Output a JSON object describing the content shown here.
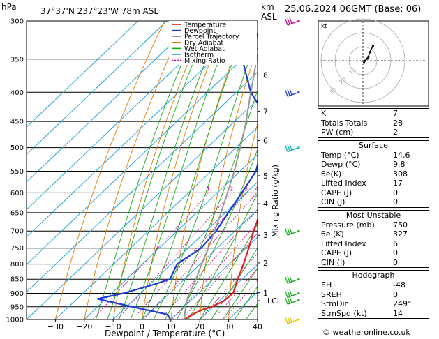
{
  "header": {
    "pressure_unit": "hPa",
    "location": "37°37'N  237°23'W  78m  ASL",
    "km_unit": "km",
    "asl": "ASL",
    "datetime": "25.06.2024  06GMT  (Base: 06)"
  },
  "legend": [
    {
      "name": "Temperature",
      "color": "#e8191b"
    },
    {
      "name": "Dewpoint",
      "color": "#1e3ad6"
    },
    {
      "name": "Parcel Trajectory",
      "color": "#999999"
    },
    {
      "name": "Dry Adiabat",
      "color": "#e07b00"
    },
    {
      "name": "Wet Adiabat",
      "color": "#17a818"
    },
    {
      "name": "Isotherm",
      "color": "#25a4d6"
    },
    {
      "name": "Mixing Ratio",
      "color": "#c0008a"
    }
  ],
  "chart_data": {
    "type": "line",
    "xlabel": "Dewpoint / Temperature (°C)",
    "ylabel_right": "Mixing Ratio (g/kg)",
    "x_ticks": [
      -30,
      -20,
      -10,
      0,
      10,
      20,
      30,
      40
    ],
    "xlim": [
      -40,
      40
    ],
    "pressure_levels": [
      300,
      350,
      400,
      450,
      500,
      550,
      600,
      650,
      700,
      750,
      800,
      850,
      900,
      950,
      1000
    ],
    "km_ticks": [
      {
        "label": "8",
        "p": 373
      },
      {
        "label": "7",
        "p": 432
      },
      {
        "label": "6",
        "p": 486
      },
      {
        "label": "5",
        "p": 560
      },
      {
        "label": "4",
        "p": 627
      },
      {
        "label": "3",
        "p": 712
      },
      {
        "label": "2",
        "p": 796
      },
      {
        "label": "1",
        "p": 898
      },
      {
        "label": "LCL",
        "p": 927
      }
    ],
    "mixing_ratio_labels": [
      "1",
      "2",
      "3",
      "4",
      "6",
      "8",
      "10",
      "15",
      "20",
      "25"
    ],
    "mixing_ratio_values": [
      1,
      2,
      3,
      4,
      6,
      8,
      10,
      15,
      20,
      25
    ],
    "series": [
      {
        "name": "Temperature",
        "color": "#e8191b",
        "p": [
          1000,
          975,
          960,
          950,
          930,
          900,
          850,
          800,
          750,
          700,
          650,
          600,
          550,
          500,
          450,
          400,
          350,
          300
        ],
        "t": [
          14.6,
          16,
          17.5,
          19.5,
          21.5,
          22,
          18.5,
          15,
          11,
          6.5,
          2,
          -3,
          -8.5,
          -14.5,
          -20.5,
          -27,
          -34,
          -42
        ]
      },
      {
        "name": "Dewpoint",
        "color": "#1e3ad6",
        "p": [
          1000,
          980,
          960,
          940,
          920,
          900,
          870,
          850,
          800,
          770,
          750,
          700,
          650,
          600,
          550,
          500,
          450,
          400,
          350,
          300
        ],
        "t": [
          9.8,
          7,
          -3,
          -13,
          -23,
          -16,
          -9,
          -5,
          -8,
          -6.5,
          -5.5,
          -6.5,
          -9,
          -11.5,
          -14.5,
          -21,
          -28,
          -45,
          -60,
          -66
        ]
      },
      {
        "name": "Parcel Trajectory",
        "color": "#999999",
        "p": [
          1000,
          927,
          900,
          850,
          800,
          750,
          700,
          650,
          600,
          550,
          500,
          450,
          400,
          350,
          300
        ],
        "t": [
          14.6,
          8.5,
          7,
          4,
          0.5,
          -3,
          -7,
          -11.5,
          -16.5,
          -22,
          -28.5,
          -36,
          -45,
          -55,
          -66
        ]
      }
    ],
    "wind_barbs": [
      {
        "p": 300,
        "color": "#c0008a"
      },
      {
        "p": 400,
        "color": "#1e3ad6"
      },
      {
        "p": 500,
        "color": "#00b0b0"
      },
      {
        "p": 700,
        "color": "#17a818"
      },
      {
        "p": 850,
        "color": "#17a818"
      },
      {
        "p": 900,
        "color": "#17a818"
      },
      {
        "p": 925,
        "color": "#17a818"
      },
      {
        "p": 1000,
        "color": "#e0c000"
      }
    ],
    "hodograph": {
      "label": "kt",
      "ring_labels": [
        "10",
        "20",
        "30"
      ],
      "u": [
        1,
        2,
        4,
        5,
        6,
        9
      ],
      "v": [
        -1,
        0,
        1,
        2,
        4,
        7
      ]
    }
  },
  "indices": {
    "top": [
      {
        "label": "K",
        "value": "7"
      },
      {
        "label": "Totals Totals",
        "value": "28"
      },
      {
        "label": "PW (cm)",
        "value": "2"
      }
    ],
    "surface_title": "Surface",
    "surface": [
      {
        "label": "Temp (°C)",
        "value": "14.6"
      },
      {
        "label": "Dewp (°C)",
        "value": "9.8"
      },
      {
        "label": "θe(K)",
        "value": "308"
      },
      {
        "label": "Lifted Index",
        "value": "17"
      },
      {
        "label": "CAPE (J)",
        "value": "0"
      },
      {
        "label": "CIN (J)",
        "value": "0"
      }
    ],
    "unstable_title": "Most Unstable",
    "unstable": [
      {
        "label": "Pressure (mb)",
        "value": "750"
      },
      {
        "label": "θe (K)",
        "value": "327"
      },
      {
        "label": "Lifted Index",
        "value": "6"
      },
      {
        "label": "CAPE (J)",
        "value": "0"
      },
      {
        "label": "CIN (J)",
        "value": "0"
      }
    ],
    "hodo_title": "Hodograph",
    "hodo": [
      {
        "label": "EH",
        "value": "-48"
      },
      {
        "label": "SREH",
        "value": "0"
      },
      {
        "label": "StmDir",
        "value": "249°"
      },
      {
        "label": "StmSpd (kt)",
        "value": "14"
      }
    ]
  },
  "credit": "© weatheronline.co.uk"
}
